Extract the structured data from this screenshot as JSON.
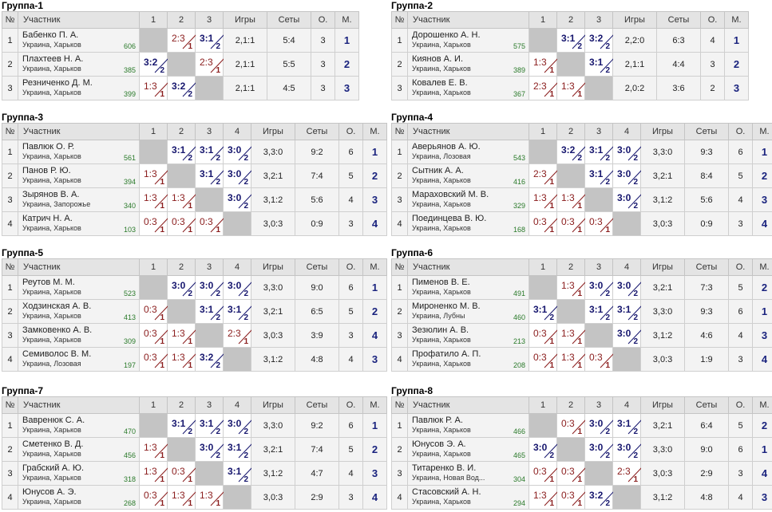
{
  "headers": {
    "num": "№",
    "participant": "Участник",
    "games": "Игры",
    "sets": "Сеты",
    "points": "О.",
    "place": "М."
  },
  "groups": [
    {
      "title": "Группа-1",
      "cols": [
        "1",
        "2",
        "3"
      ],
      "rows": [
        {
          "n": "1",
          "name": "Бабенко П. А.",
          "loc": "Украина, Харьков",
          "rating": "606",
          "scores": [
            null,
            {
              "s": "2:3",
              "r": "1",
              "w": false
            },
            {
              "s": "3:1",
              "r": "2",
              "w": true
            }
          ],
          "games": "2,1:1",
          "sets": "5:4",
          "pts": "3",
          "place": "1"
        },
        {
          "n": "2",
          "name": "Плахтеев Н. А.",
          "loc": "Украина, Харьков",
          "rating": "385",
          "scores": [
            {
              "s": "3:2",
              "r": "2",
              "w": true
            },
            null,
            {
              "s": "2:3",
              "r": "1",
              "w": false
            }
          ],
          "games": "2,1:1",
          "sets": "5:5",
          "pts": "3",
          "place": "2"
        },
        {
          "n": "3",
          "name": "Резниченко Д. М.",
          "loc": "Украина, Харьков",
          "rating": "399",
          "scores": [
            {
              "s": "1:3",
              "r": "1",
              "w": false
            },
            {
              "s": "3:2",
              "r": "2",
              "w": true
            },
            null
          ],
          "games": "2,1:1",
          "sets": "4:5",
          "pts": "3",
          "place": "3"
        }
      ]
    },
    {
      "title": "Группа-2",
      "cols": [
        "1",
        "2",
        "3"
      ],
      "rows": [
        {
          "n": "1",
          "name": "Дорошенко А. Н.",
          "loc": "Украина, Харьков",
          "rating": "575",
          "scores": [
            null,
            {
              "s": "3:1",
              "r": "2",
              "w": true
            },
            {
              "s": "3:2",
              "r": "2",
              "w": true
            }
          ],
          "games": "2,2:0",
          "sets": "6:3",
          "pts": "4",
          "place": "1"
        },
        {
          "n": "2",
          "name": "Киянов А. И.",
          "loc": "Украина, Харьков",
          "rating": "389",
          "scores": [
            {
              "s": "1:3",
              "r": "1",
              "w": false
            },
            null,
            {
              "s": "3:1",
              "r": "2",
              "w": true
            }
          ],
          "games": "2,1:1",
          "sets": "4:4",
          "pts": "3",
          "place": "2"
        },
        {
          "n": "3",
          "name": "Ковалев Е. В.",
          "loc": "Украина, Харьков",
          "rating": "367",
          "scores": [
            {
              "s": "2:3",
              "r": "1",
              "w": false
            },
            {
              "s": "1:3",
              "r": "1",
              "w": false
            },
            null
          ],
          "games": "2,0:2",
          "sets": "3:6",
          "pts": "2",
          "place": "3"
        }
      ]
    },
    {
      "title": "Группа-3",
      "cols": [
        "1",
        "2",
        "3",
        "4"
      ],
      "rows": [
        {
          "n": "1",
          "name": "Павлюк О. Р.",
          "loc": "Украина, Харьков",
          "rating": "561",
          "scores": [
            null,
            {
              "s": "3:1",
              "r": "2",
              "w": true
            },
            {
              "s": "3:1",
              "r": "2",
              "w": true
            },
            {
              "s": "3:0",
              "r": "2",
              "w": true
            }
          ],
          "games": "3,3:0",
          "sets": "9:2",
          "pts": "6",
          "place": "1"
        },
        {
          "n": "2",
          "name": "Панов Р. Ю.",
          "loc": "Украина, Харьков",
          "rating": "394",
          "scores": [
            {
              "s": "1:3",
              "r": "1",
              "w": false
            },
            null,
            {
              "s": "3:1",
              "r": "2",
              "w": true
            },
            {
              "s": "3:0",
              "r": "2",
              "w": true
            }
          ],
          "games": "3,2:1",
          "sets": "7:4",
          "pts": "5",
          "place": "2"
        },
        {
          "n": "3",
          "name": "Зырянов В. А.",
          "loc": "Украина, Запорожье",
          "rating": "340",
          "scores": [
            {
              "s": "1:3",
              "r": "1",
              "w": false
            },
            {
              "s": "1:3",
              "r": "1",
              "w": false
            },
            null,
            {
              "s": "3:0",
              "r": "2",
              "w": true
            }
          ],
          "games": "3,1:2",
          "sets": "5:6",
          "pts": "4",
          "place": "3"
        },
        {
          "n": "4",
          "name": "Катрич Н. А.",
          "loc": "Украина, Харьков",
          "rating": "103",
          "scores": [
            {
              "s": "0:3",
              "r": "1",
              "w": false
            },
            {
              "s": "0:3",
              "r": "1",
              "w": false
            },
            {
              "s": "0:3",
              "r": "1",
              "w": false
            },
            null
          ],
          "games": "3,0:3",
          "sets": "0:9",
          "pts": "3",
          "place": "4"
        }
      ]
    },
    {
      "title": "Группа-4",
      "cols": [
        "1",
        "2",
        "3",
        "4"
      ],
      "rows": [
        {
          "n": "1",
          "name": "Аверьянов А. Ю.",
          "loc": "Украина, Лозовая",
          "rating": "543",
          "scores": [
            null,
            {
              "s": "3:2",
              "r": "2",
              "w": true
            },
            {
              "s": "3:1",
              "r": "2",
              "w": true
            },
            {
              "s": "3:0",
              "r": "2",
              "w": true
            }
          ],
          "games": "3,3:0",
          "sets": "9:3",
          "pts": "6",
          "place": "1"
        },
        {
          "n": "2",
          "name": "Сытник А. А.",
          "loc": "Украина, Харьков",
          "rating": "416",
          "scores": [
            {
              "s": "2:3",
              "r": "1",
              "w": false
            },
            null,
            {
              "s": "3:1",
              "r": "2",
              "w": true
            },
            {
              "s": "3:0",
              "r": "2",
              "w": true
            }
          ],
          "games": "3,2:1",
          "sets": "8:4",
          "pts": "5",
          "place": "2"
        },
        {
          "n": "3",
          "name": "Мараховский М. В.",
          "loc": "Украина, Харьков",
          "rating": "329",
          "scores": [
            {
              "s": "1:3",
              "r": "1",
              "w": false
            },
            {
              "s": "1:3",
              "r": "1",
              "w": false
            },
            null,
            {
              "s": "3:0",
              "r": "2",
              "w": true
            }
          ],
          "games": "3,1:2",
          "sets": "5:6",
          "pts": "4",
          "place": "3"
        },
        {
          "n": "4",
          "name": "Поединцева В. Ю.",
          "loc": "Украина, Харьков",
          "rating": "168",
          "scores": [
            {
              "s": "0:3",
              "r": "1",
              "w": false
            },
            {
              "s": "0:3",
              "r": "1",
              "w": false
            },
            {
              "s": "0:3",
              "r": "1",
              "w": false
            },
            null
          ],
          "games": "3,0:3",
          "sets": "0:9",
          "pts": "3",
          "place": "4"
        }
      ]
    },
    {
      "title": "Группа-5",
      "cols": [
        "1",
        "2",
        "3",
        "4"
      ],
      "rows": [
        {
          "n": "1",
          "name": "Реутов М. М.",
          "loc": "Украина, Харьков",
          "rating": "523",
          "scores": [
            null,
            {
              "s": "3:0",
              "r": "2",
              "w": true
            },
            {
              "s": "3:0",
              "r": "2",
              "w": true
            },
            {
              "s": "3:0",
              "r": "2",
              "w": true
            }
          ],
          "games": "3,3:0",
          "sets": "9:0",
          "pts": "6",
          "place": "1"
        },
        {
          "n": "2",
          "name": "Ходзинская А. В.",
          "loc": "Украина, Харьков",
          "rating": "413",
          "scores": [
            {
              "s": "0:3",
              "r": "1",
              "w": false
            },
            null,
            {
              "s": "3:1",
              "r": "2",
              "w": true
            },
            {
              "s": "3:1",
              "r": "2",
              "w": true
            }
          ],
          "games": "3,2:1",
          "sets": "6:5",
          "pts": "5",
          "place": "2"
        },
        {
          "n": "3",
          "name": "Замковенко А. В.",
          "loc": "Украина, Харьков",
          "rating": "309",
          "scores": [
            {
              "s": "0:3",
              "r": "1",
              "w": false
            },
            {
              "s": "1:3",
              "r": "1",
              "w": false
            },
            null,
            {
              "s": "2:3",
              "r": "1",
              "w": false
            }
          ],
          "games": "3,0:3",
          "sets": "3:9",
          "pts": "3",
          "place": "4"
        },
        {
          "n": "4",
          "name": "Семиволос В. М.",
          "loc": "Украина, Лозовая",
          "rating": "197",
          "scores": [
            {
              "s": "0:3",
              "r": "1",
              "w": false
            },
            {
              "s": "1:3",
              "r": "1",
              "w": false
            },
            {
              "s": "3:2",
              "r": "2",
              "w": true
            },
            null
          ],
          "games": "3,1:2",
          "sets": "4:8",
          "pts": "4",
          "place": "3"
        }
      ]
    },
    {
      "title": "Группа-6",
      "cols": [
        "1",
        "2",
        "3",
        "4"
      ],
      "rows": [
        {
          "n": "1",
          "name": "Пименов В. Е.",
          "loc": "Украина, Харьков",
          "rating": "491",
          "scores": [
            null,
            {
              "s": "1:3",
              "r": "1",
              "w": false
            },
            {
              "s": "3:0",
              "r": "2",
              "w": true
            },
            {
              "s": "3:0",
              "r": "2",
              "w": true
            }
          ],
          "games": "3,2:1",
          "sets": "7:3",
          "pts": "5",
          "place": "2"
        },
        {
          "n": "2",
          "name": "Мироненко М. В.",
          "loc": "Украина, Лубны",
          "rating": "460",
          "scores": [
            {
              "s": "3:1",
              "r": "2",
              "w": true
            },
            null,
            {
              "s": "3:1",
              "r": "2",
              "w": true
            },
            {
              "s": "3:1",
              "r": "2",
              "w": true
            }
          ],
          "games": "3,3:0",
          "sets": "9:3",
          "pts": "6",
          "place": "1"
        },
        {
          "n": "3",
          "name": "Зезюлин А. В.",
          "loc": "Украина, Харьков",
          "rating": "213",
          "scores": [
            {
              "s": "0:3",
              "r": "1",
              "w": false
            },
            {
              "s": "1:3",
              "r": "1",
              "w": false
            },
            null,
            {
              "s": "3:0",
              "r": "2",
              "w": true
            }
          ],
          "games": "3,1:2",
          "sets": "4:6",
          "pts": "4",
          "place": "3"
        },
        {
          "n": "4",
          "name": "Профатило А. П.",
          "loc": "Украина, Харьков",
          "rating": "208",
          "scores": [
            {
              "s": "0:3",
              "r": "1",
              "w": false
            },
            {
              "s": "1:3",
              "r": "1",
              "w": false
            },
            {
              "s": "0:3",
              "r": "1",
              "w": false
            },
            null
          ],
          "games": "3,0:3",
          "sets": "1:9",
          "pts": "3",
          "place": "4"
        }
      ]
    },
    {
      "title": "Группа-7",
      "cols": [
        "1",
        "2",
        "3",
        "4"
      ],
      "rows": [
        {
          "n": "1",
          "name": "Вавренюк С. А.",
          "loc": "Украина, Харьков",
          "rating": "470",
          "scores": [
            null,
            {
              "s": "3:1",
              "r": "2",
              "w": true
            },
            {
              "s": "3:1",
              "r": "2",
              "w": true
            },
            {
              "s": "3:0",
              "r": "2",
              "w": true
            }
          ],
          "games": "3,3:0",
          "sets": "9:2",
          "pts": "6",
          "place": "1"
        },
        {
          "n": "2",
          "name": "Сметенко В. Д.",
          "loc": "Украина, Харьков",
          "rating": "456",
          "scores": [
            {
              "s": "1:3",
              "r": "1",
              "w": false
            },
            null,
            {
              "s": "3:0",
              "r": "2",
              "w": true
            },
            {
              "s": "3:1",
              "r": "2",
              "w": true
            }
          ],
          "games": "3,2:1",
          "sets": "7:4",
          "pts": "5",
          "place": "2"
        },
        {
          "n": "3",
          "name": "Грабский А. Ю.",
          "loc": "Украина, Харьков",
          "rating": "318",
          "scores": [
            {
              "s": "1:3",
              "r": "1",
              "w": false
            },
            {
              "s": "0:3",
              "r": "1",
              "w": false
            },
            null,
            {
              "s": "3:1",
              "r": "2",
              "w": true
            }
          ],
          "games": "3,1:2",
          "sets": "4:7",
          "pts": "4",
          "place": "3"
        },
        {
          "n": "4",
          "name": "Юнусов А. Э.",
          "loc": "Украина, Харьков",
          "rating": "268",
          "scores": [
            {
              "s": "0:3",
              "r": "1",
              "w": false
            },
            {
              "s": "1:3",
              "r": "1",
              "w": false
            },
            {
              "s": "1:3",
              "r": "1",
              "w": false
            },
            null
          ],
          "games": "3,0:3",
          "sets": "2:9",
          "pts": "3",
          "place": "4"
        }
      ]
    },
    {
      "title": "Группа-8",
      "cols": [
        "1",
        "2",
        "3",
        "4"
      ],
      "rows": [
        {
          "n": "1",
          "name": "Павлюк Р. А.",
          "loc": "Украина, Харьков",
          "rating": "466",
          "scores": [
            null,
            {
              "s": "0:3",
              "r": "1",
              "w": false
            },
            {
              "s": "3:0",
              "r": "2",
              "w": true
            },
            {
              "s": "3:1",
              "r": "2",
              "w": true
            }
          ],
          "games": "3,2:1",
          "sets": "6:4",
          "pts": "5",
          "place": "2"
        },
        {
          "n": "2",
          "name": "Юнусов Э. А.",
          "loc": "Украина, Харьков",
          "rating": "465",
          "scores": [
            {
              "s": "3:0",
              "r": "2",
              "w": true
            },
            null,
            {
              "s": "3:0",
              "r": "2",
              "w": true
            },
            {
              "s": "3:0",
              "r": "2",
              "w": true
            }
          ],
          "games": "3,3:0",
          "sets": "9:0",
          "pts": "6",
          "place": "1"
        },
        {
          "n": "3",
          "name": "Титаренко В. И.",
          "loc": "Украина, Новая Вод...",
          "rating": "304",
          "scores": [
            {
              "s": "0:3",
              "r": "1",
              "w": false
            },
            {
              "s": "0:3",
              "r": "1",
              "w": false
            },
            null,
            {
              "s": "2:3",
              "r": "1",
              "w": false
            }
          ],
          "games": "3,0:3",
          "sets": "2:9",
          "pts": "3",
          "place": "4"
        },
        {
          "n": "4",
          "name": "Стасовский А. Н.",
          "loc": "Украина, Харьков",
          "rating": "294",
          "scores": [
            {
              "s": "1:3",
              "r": "1",
              "w": false
            },
            {
              "s": "0:3",
              "r": "1",
              "w": false
            },
            {
              "s": "3:2",
              "r": "2",
              "w": true
            },
            null
          ],
          "games": "3,1:2",
          "sets": "4:8",
          "pts": "4",
          "place": "3"
        }
      ]
    }
  ]
}
